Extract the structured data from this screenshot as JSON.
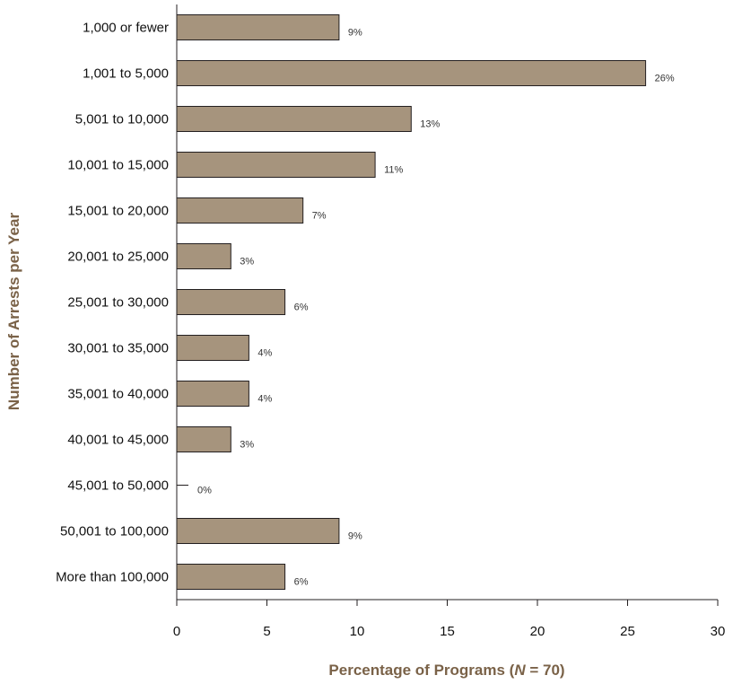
{
  "chart_data": {
    "type": "bar",
    "orientation": "horizontal",
    "categories": [
      "1,000 or fewer",
      "1,001 to 5,000",
      "5,001 to 10,000",
      "10,001 to 15,000",
      "15,001 to 20,000",
      "20,001 to 25,000",
      "25,001 to 30,000",
      "30,001 to 35,000",
      "35,001 to 40,000",
      "40,001 to 45,000",
      "45,001 to 50,000",
      "50,001 to 100,000",
      "More than 100,000"
    ],
    "values": [
      9,
      26,
      13,
      11,
      7,
      3,
      6,
      4,
      4,
      3,
      0,
      9,
      6
    ],
    "value_labels": [
      "9%",
      "26%",
      "13%",
      "11%",
      "7%",
      "3%",
      "6%",
      "4%",
      "4%",
      "3%",
      "0%",
      "9%",
      "6%"
    ],
    "xlabel": {
      "prefix": "Percentage of Programs (",
      "n_symbol": "N",
      "suffix": " = 70)"
    },
    "ylabel": "Number of Arrests per Year",
    "xlim": [
      0,
      30
    ],
    "xticks": [
      "0",
      "5",
      "10",
      "15",
      "20",
      "25",
      "30"
    ],
    "grid": false,
    "colors": {
      "bar_fill": "#a6947d",
      "bar_stroke": "#231f20",
      "axis_title": "#7a6248"
    }
  }
}
